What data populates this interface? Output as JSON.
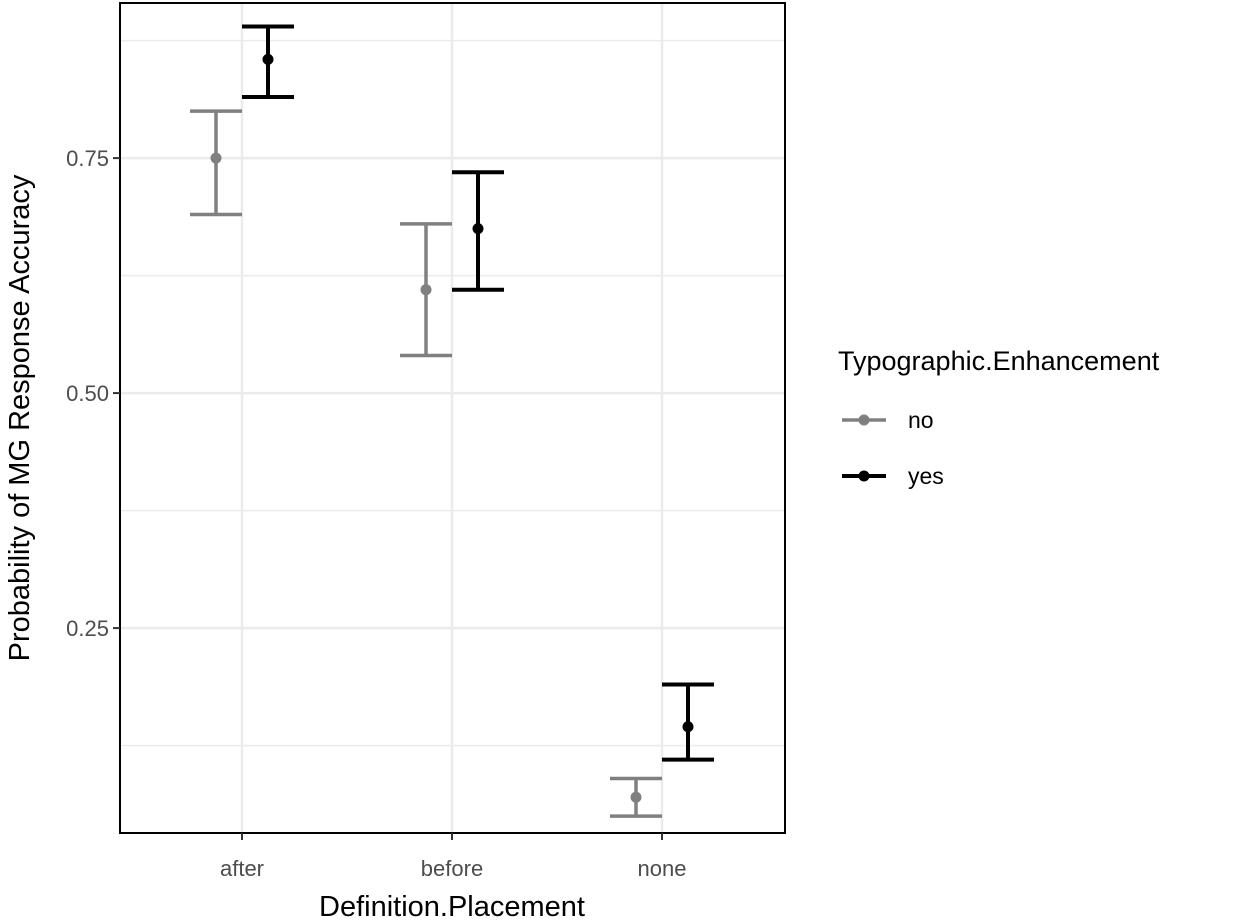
{
  "chart_data": {
    "type": "scatter",
    "subtype": "point-errorbar",
    "title": "",
    "xlabel": "Definition.Placement",
    "ylabel": "Probability of MG Response Accuracy",
    "categories": [
      "after",
      "before",
      "none"
    ],
    "ylim": [
      0.032,
      0.915
    ],
    "yticks": [
      0.25,
      0.5,
      0.75
    ],
    "ytick_labels": [
      "0.25",
      "0.50",
      "0.75"
    ],
    "grid": true,
    "legend": {
      "title": "Typographic.Enhancement",
      "position": "right"
    },
    "series": [
      {
        "name": "no",
        "color": "#808080",
        "values": [
          0.75,
          0.61,
          0.07
        ],
        "lower": [
          0.69,
          0.54,
          0.05
        ],
        "upper": [
          0.8,
          0.68,
          0.09
        ]
      },
      {
        "name": "yes",
        "color": "#000000",
        "values": [
          0.855,
          0.675,
          0.145
        ],
        "lower": [
          0.815,
          0.61,
          0.11
        ],
        "upper": [
          0.89,
          0.735,
          0.19
        ]
      }
    ]
  }
}
